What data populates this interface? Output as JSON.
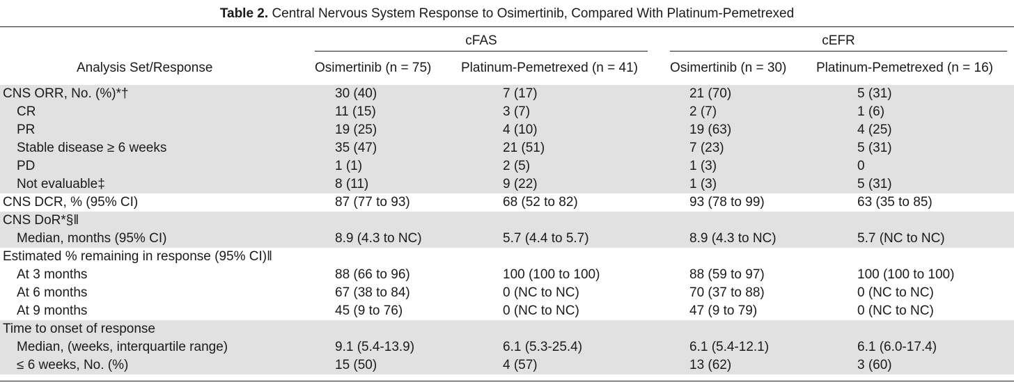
{
  "table": {
    "title_label": "Table 2.",
    "title_text": "Central Nervous System Response to Osimertinib, Compared With Platinum-Pemetrexed",
    "groups": [
      "cFAS",
      "cEFR"
    ],
    "row_header": "Analysis Set/Response",
    "columns": [
      "Osimertinib (n = 75)",
      "Platinum-Pemetrexed (n = 41)",
      "Osimertinib (n = 30)",
      "Platinum-Pemetrexed (n = 16)"
    ],
    "rows": [
      {
        "label": "CNS ORR, No. (%)*†",
        "indent": false,
        "shaded": true,
        "values": [
          "30 (40)",
          "7 (17)",
          "21 (70)",
          "5 (31)"
        ]
      },
      {
        "label": "CR",
        "indent": true,
        "shaded": true,
        "values": [
          "11 (15)",
          "3 (7)",
          "2 (7)",
          "1 (6)"
        ]
      },
      {
        "label": "PR",
        "indent": true,
        "shaded": true,
        "values": [
          "19 (25)",
          "4 (10)",
          "19 (63)",
          "4 (25)"
        ]
      },
      {
        "label": "Stable disease ≥ 6 weeks",
        "indent": true,
        "shaded": true,
        "values": [
          "35 (47)",
          "21 (51)",
          "7 (23)",
          "5 (31)"
        ]
      },
      {
        "label": "PD",
        "indent": true,
        "shaded": true,
        "values": [
          "1 (1)",
          "2 (5)",
          "1 (3)",
          "0"
        ]
      },
      {
        "label": "Not evaluable‡",
        "indent": true,
        "shaded": true,
        "values": [
          "8 (11)",
          "9 (22)",
          "1 (3)",
          "5 (31)"
        ]
      },
      {
        "label": "CNS DCR, % (95% CI)",
        "indent": false,
        "shaded": false,
        "values": [
          "87 (77 to 93)",
          "68 (52 to 82)",
          "93 (78 to 99)",
          "63 (35 to 85)"
        ]
      },
      {
        "label": "CNS DoR*§‖",
        "indent": false,
        "shaded": true,
        "values": [
          "",
          "",
          "",
          ""
        ]
      },
      {
        "label": "Median, months (95% CI)",
        "indent": true,
        "shaded": true,
        "values": [
          "8.9 (4.3 to NC)",
          "5.7 (4.4 to 5.7)",
          "8.9 (4.3 to NC)",
          "5.7 (NC to NC)"
        ]
      },
      {
        "label": "Estimated % remaining in response (95% CI)‖",
        "indent": false,
        "shaded": false,
        "values": [
          "",
          "",
          "",
          ""
        ]
      },
      {
        "label": "At 3 months",
        "indent": true,
        "shaded": false,
        "values": [
          "88 (66 to 96)",
          "100 (100 to 100)",
          "88 (59 to 97)",
          "100 (100 to 100)"
        ]
      },
      {
        "label": "At 6 months",
        "indent": true,
        "shaded": false,
        "values": [
          "67 (38 to 84)",
          "0 (NC to NC)",
          "70 (37 to 88)",
          "0 (NC to NC)"
        ]
      },
      {
        "label": "At 9 months",
        "indent": true,
        "shaded": false,
        "values": [
          "45 (9 to 76)",
          "0 (NC to NC)",
          "47 (9 to 79)",
          "0 (NC to NC)"
        ]
      },
      {
        "label": "Time to onset of response",
        "indent": false,
        "shaded": true,
        "values": [
          "",
          "",
          "",
          ""
        ]
      },
      {
        "label": "Median, (weeks, interquartile range)",
        "indent": true,
        "shaded": true,
        "values": [
          "9.1 (5.4-13.9)",
          "6.1 (5.3-25.4)",
          "6.1 (5.4-12.1)",
          "6.1 (6.0-17.4)"
        ]
      },
      {
        "label": "≤ 6 weeks, No. (%)",
        "indent": true,
        "shaded": true,
        "values": [
          "15 (50)",
          "4 (57)",
          "13 (62)",
          "3 (60)"
        ]
      }
    ]
  },
  "colors": {
    "shade": "#e1e1e1",
    "text": "#1a1a1a",
    "rule": "#1a1a1a"
  }
}
